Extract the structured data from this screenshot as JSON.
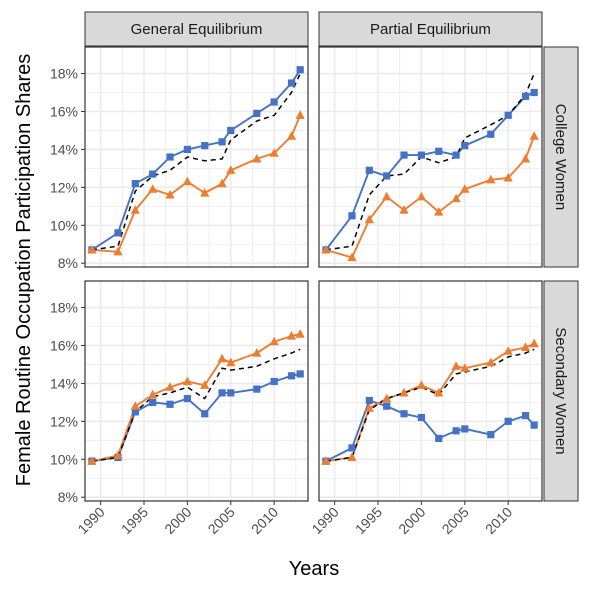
{
  "figure": {
    "ylabel": "Female Routine Occupation Participation Shares",
    "xlabel": "Years"
  },
  "colors": {
    "strip_fill": "#d9d9d9",
    "grid": "#ebebeb",
    "panel_border": "#333333",
    "series_blue": "#4472c4",
    "series_orange": "#ed7d31",
    "series_dashed": "#000000"
  },
  "chart_data": {
    "type": "line",
    "facet_columns": [
      "General Equilibrium",
      "Partial Equilibrium"
    ],
    "facet_rows": [
      "College Women",
      "Secondary Women"
    ],
    "x_ticks": [
      1990,
      1995,
      2000,
      2005,
      2010
    ],
    "x_tick_labels": [
      "1990",
      "1995",
      "2000",
      "2005",
      "2010"
    ],
    "xlim": [
      1988.2,
      2013.9
    ],
    "x": [
      1989,
      1992,
      1994,
      1996,
      1998,
      2000,
      2002,
      2004,
      2005,
      2008,
      2010,
      2012,
      2013
    ],
    "grid": true,
    "series_styles": [
      {
        "key": "blue",
        "marker": "square",
        "color": "#4472c4",
        "line": "solid"
      },
      {
        "key": "orange",
        "marker": "triangle",
        "color": "#ed7d31",
        "line": "solid"
      },
      {
        "key": "dashed",
        "marker": "none",
        "color": "#000000",
        "line": "dashed"
      }
    ],
    "panels": [
      {
        "row": "College Women",
        "column": "General Equilibrium",
        "ylim": [
          7.8,
          19.4
        ],
        "y_ticks": [
          8,
          10,
          12,
          14,
          16,
          18
        ],
        "y_tick_labels": [
          "8%",
          "10%",
          "12%",
          "14%",
          "16%",
          "18%"
        ],
        "series": [
          {
            "key": "blue",
            "values": [
              8.7,
              9.6,
              12.2,
              12.7,
              13.6,
              14.0,
              14.2,
              14.4,
              15.0,
              15.9,
              16.5,
              17.5,
              18.2
            ]
          },
          {
            "key": "orange",
            "values": [
              8.7,
              8.6,
              10.8,
              11.9,
              11.6,
              12.3,
              11.7,
              12.2,
              12.9,
              13.5,
              13.8,
              14.7,
              15.8
            ]
          },
          {
            "key": "dashed",
            "values": [
              8.7,
              8.9,
              11.8,
              12.6,
              12.9,
              13.6,
              13.4,
              13.5,
              14.5,
              15.5,
              15.8,
              17.0,
              18.0
            ]
          }
        ]
      },
      {
        "row": "College Women",
        "column": "Partial Equilibrium",
        "ylim": [
          7.8,
          19.4
        ],
        "y_ticks": [
          8,
          10,
          12,
          14,
          16,
          18
        ],
        "y_tick_labels": [
          "8%",
          "10%",
          "12%",
          "14%",
          "16%",
          "18%"
        ],
        "series": [
          {
            "key": "blue",
            "values": [
              8.7,
              10.5,
              12.9,
              12.6,
              13.7,
              13.7,
              13.9,
              13.7,
              14.2,
              14.8,
              15.8,
              16.8,
              17.0
            ]
          },
          {
            "key": "orange",
            "values": [
              8.7,
              8.3,
              10.3,
              11.5,
              10.8,
              11.5,
              10.7,
              11.4,
              11.9,
              12.4,
              12.5,
              13.5,
              14.7
            ]
          },
          {
            "key": "dashed",
            "values": [
              8.7,
              8.9,
              11.6,
              12.6,
              12.7,
              13.6,
              13.3,
              13.6,
              14.6,
              15.3,
              15.8,
              16.9,
              18.0
            ]
          }
        ]
      },
      {
        "row": "Secondary Women",
        "column": "General Equilibrium",
        "ylim": [
          7.8,
          19.4
        ],
        "y_ticks": [
          8,
          10,
          12,
          14,
          16,
          18
        ],
        "y_tick_labels": [
          "8%",
          "10%",
          "12%",
          "14%",
          "16%",
          "18%"
        ],
        "series": [
          {
            "key": "blue",
            "values": [
              9.9,
              10.1,
              12.5,
              13.0,
              12.9,
              13.2,
              12.4,
              13.5,
              13.5,
              13.7,
              14.1,
              14.4,
              14.5
            ]
          },
          {
            "key": "orange",
            "values": [
              9.9,
              10.2,
              12.8,
              13.4,
              13.8,
              14.1,
              13.9,
              15.3,
              15.1,
              15.6,
              16.2,
              16.5,
              16.6
            ]
          },
          {
            "key": "dashed",
            "values": [
              9.9,
              10.1,
              12.5,
              13.3,
              13.5,
              13.8,
              13.2,
              14.8,
              14.7,
              14.9,
              15.3,
              15.6,
              15.8
            ]
          }
        ]
      },
      {
        "row": "Secondary Women",
        "column": "Partial Equilibrium",
        "ylim": [
          7.8,
          19.4
        ],
        "y_ticks": [
          8,
          10,
          12,
          14,
          16,
          18
        ],
        "y_tick_labels": [
          "8%",
          "10%",
          "12%",
          "14%",
          "16%",
          "18%"
        ],
        "series": [
          {
            "key": "blue",
            "values": [
              9.9,
              10.6,
              13.1,
              12.8,
              12.4,
              12.2,
              11.1,
              11.5,
              11.6,
              11.3,
              12.0,
              12.3,
              11.8
            ]
          },
          {
            "key": "orange",
            "values": [
              9.9,
              10.1,
              12.7,
              13.2,
              13.5,
              13.9,
              13.5,
              14.9,
              14.8,
              15.1,
              15.7,
              15.9,
              16.1
            ]
          },
          {
            "key": "dashed",
            "values": [
              9.9,
              10.1,
              12.6,
              13.2,
              13.5,
              13.8,
              13.4,
              14.5,
              14.6,
              14.9,
              15.4,
              15.6,
              15.8
            ]
          }
        ]
      }
    ]
  }
}
